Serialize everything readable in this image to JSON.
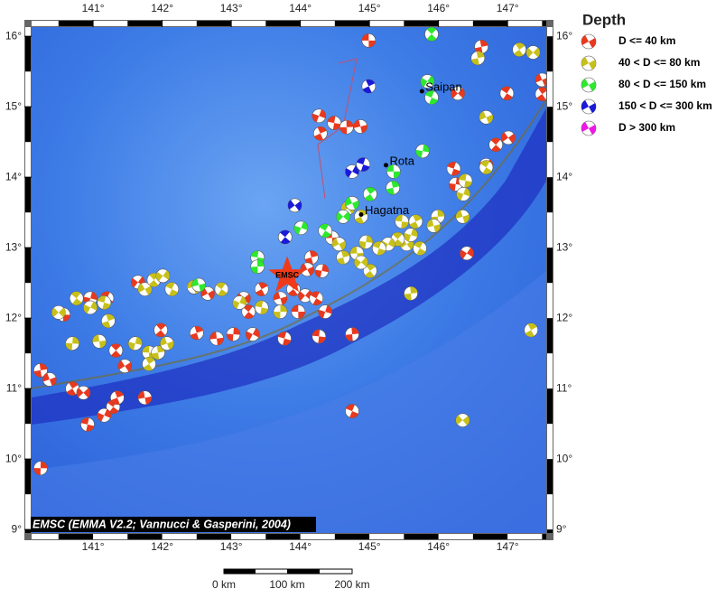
{
  "map": {
    "lonlim": [
      140.11,
      147.56
    ],
    "latlim": [
      8.95,
      16.13
    ],
    "lonticks": [
      {
        "value": 141,
        "label": "141°"
      },
      {
        "value": 142,
        "label": "142°"
      },
      {
        "value": 143,
        "label": "143°"
      },
      {
        "value": 144,
        "label": "144°"
      },
      {
        "value": 145,
        "label": "145°"
      },
      {
        "value": 146,
        "label": "146°"
      },
      {
        "value": 147,
        "label": "147°"
      }
    ],
    "latticks": [
      {
        "value": 9,
        "label": "9°"
      },
      {
        "value": 10,
        "label": "10°"
      },
      {
        "value": 11,
        "label": "11°"
      },
      {
        "value": 12,
        "label": "12°"
      },
      {
        "value": 13,
        "label": "13°"
      },
      {
        "value": 14,
        "label": "14°"
      },
      {
        "value": 15,
        "label": "15°"
      },
      {
        "value": 16,
        "label": "16°"
      }
    ],
    "legend": {
      "title": "Depth",
      "items": [
        {
          "label": "D <= 40 km",
          "color": "#e8391f"
        },
        {
          "label": "40 < D <= 80 km",
          "color": "#c8c01a"
        },
        {
          "label": "80 < D <= 150 km",
          "color": "#2ee82e"
        },
        {
          "label": "150 < D <= 300 km",
          "color": "#1a1ad8"
        },
        {
          "label": "D > 300 km",
          "color": "#ee18e6"
        }
      ]
    },
    "places": [
      {
        "name": "Saipan",
        "lon": 145.76,
        "lat": 15.22
      },
      {
        "name": "Rota",
        "lon": 145.24,
        "lat": 14.17
      },
      {
        "name": "Hagatna",
        "lon": 144.88,
        "lat": 13.47
      }
    ],
    "epicenter": {
      "label": "EMSC",
      "lon": 143.81,
      "lat": 12.6
    },
    "credit": "EMSC (EMMA V2.2; Vannucci & Gasperini, 2004)",
    "scale": {
      "labels": [
        "0 km",
        "100 km",
        "200 km"
      ]
    },
    "events": [
      [
        144.99,
        15.94,
        0
      ],
      [
        146.62,
        15.85,
        0
      ],
      [
        147.5,
        15.38,
        0
      ],
      [
        147.5,
        15.18,
        0
      ],
      [
        146.28,
        15.19,
        0
      ],
      [
        146.99,
        15.19,
        0
      ],
      [
        144.27,
        14.87,
        0
      ],
      [
        144.49,
        14.77,
        0
      ],
      [
        144.67,
        14.71,
        0
      ],
      [
        144.87,
        14.72,
        0
      ],
      [
        144.29,
        14.62,
        0
      ],
      [
        147.01,
        14.56,
        0
      ],
      [
        146.83,
        14.46,
        0
      ],
      [
        146.69,
        14.17,
        0
      ],
      [
        146.22,
        14.12,
        0
      ],
      [
        146.25,
        13.9,
        0
      ],
      [
        144.46,
        13.14,
        0
      ],
      [
        144.16,
        12.86,
        0
      ],
      [
        144.1,
        12.69,
        0
      ],
      [
        143.9,
        12.41,
        0
      ],
      [
        144.07,
        12.32,
        0
      ],
      [
        144.23,
        12.28,
        0
      ],
      [
        144.36,
        12.09,
        0
      ],
      [
        144.27,
        11.74,
        0
      ],
      [
        144.75,
        11.77,
        0
      ],
      [
        143.71,
        12.28,
        0
      ],
      [
        143.44,
        12.41,
        0
      ],
      [
        143.18,
        12.28,
        0
      ],
      [
        143.25,
        12.09,
        0
      ],
      [
        143.31,
        11.77,
        0
      ],
      [
        143.77,
        11.71,
        0
      ],
      [
        143.03,
        11.77,
        0
      ],
      [
        142.79,
        11.71,
        0
      ],
      [
        142.5,
        11.79,
        0
      ],
      [
        142.66,
        12.35,
        0
      ],
      [
        141.98,
        11.83,
        0
      ],
      [
        141.65,
        12.51,
        0
      ],
      [
        141.2,
        12.28,
        0
      ],
      [
        140.96,
        12.28,
        0
      ],
      [
        140.57,
        12.05,
        0
      ],
      [
        140.24,
        11.26,
        0
      ],
      [
        140.37,
        11.13,
        0
      ],
      [
        140.7,
        11.0,
        0
      ],
      [
        140.86,
        10.94,
        0
      ],
      [
        141.29,
        10.74,
        0
      ],
      [
        141.16,
        10.62,
        0
      ],
      [
        140.92,
        10.49,
        0
      ],
      [
        140.24,
        9.87,
        0
      ],
      [
        141.75,
        10.87,
        0
      ],
      [
        141.35,
        10.87,
        0
      ],
      [
        141.46,
        11.32,
        0
      ],
      [
        141.33,
        11.54,
        0
      ],
      [
        146.41,
        12.92,
        0
      ],
      [
        144.75,
        10.68,
        0
      ],
      [
        144.31,
        12.67,
        0
      ],
      [
        143.97,
        12.09,
        0
      ],
      [
        146.57,
        15.69,
        1
      ],
      [
        146.69,
        14.85,
        1
      ],
      [
        147.17,
        15.81,
        1
      ],
      [
        147.37,
        15.77,
        1
      ],
      [
        146.69,
        14.14,
        1
      ],
      [
        146.36,
        13.76,
        1
      ],
      [
        146.39,
        13.95,
        1
      ],
      [
        145.99,
        13.44,
        1
      ],
      [
        145.93,
        13.31,
        1
      ],
      [
        145.67,
        13.37,
        1
      ],
      [
        145.54,
        13.05,
        1
      ],
      [
        145.41,
        13.12,
        1
      ],
      [
        145.27,
        13.05,
        1
      ],
      [
        145.14,
        12.99,
        1
      ],
      [
        144.95,
        13.08,
        1
      ],
      [
        144.82,
        12.92,
        1
      ],
      [
        144.62,
        12.86,
        1
      ],
      [
        144.56,
        13.05,
        1
      ],
      [
        145.01,
        12.67,
        1
      ],
      [
        144.88,
        12.79,
        1
      ],
      [
        145.73,
        12.99,
        1
      ],
      [
        145.6,
        13.18,
        1
      ],
      [
        145.47,
        13.37,
        1
      ],
      [
        145.6,
        12.35,
        1
      ],
      [
        146.35,
        13.44,
        1
      ],
      [
        147.34,
        11.83,
        1
      ],
      [
        146.35,
        10.55,
        1
      ],
      [
        140.76,
        12.28,
        1
      ],
      [
        140.96,
        12.15,
        1
      ],
      [
        141.16,
        12.22,
        1
      ],
      [
        140.7,
        11.64,
        1
      ],
      [
        141.09,
        11.67,
        1
      ],
      [
        141.22,
        11.96,
        1
      ],
      [
        141.75,
        12.41,
        1
      ],
      [
        141.88,
        12.54,
        1
      ],
      [
        142.01,
        12.6,
        1
      ],
      [
        142.14,
        12.41,
        1
      ],
      [
        141.61,
        11.64,
        1
      ],
      [
        141.81,
        11.51,
        1
      ],
      [
        141.94,
        11.51,
        1
      ],
      [
        142.07,
        11.64,
        1
      ],
      [
        141.81,
        11.35,
        1
      ],
      [
        140.5,
        12.08,
        1
      ],
      [
        142.86,
        12.41,
        1
      ],
      [
        143.12,
        12.22,
        1
      ],
      [
        143.44,
        12.15,
        1
      ],
      [
        143.71,
        12.09,
        1
      ],
      [
        142.46,
        12.44,
        1
      ],
      [
        144.88,
        13.44,
        1
      ],
      [
        144.69,
        13.56,
        1
      ],
      [
        145.9,
        16.03,
        2
      ],
      [
        145.84,
        15.36,
        2
      ],
      [
        145.9,
        15.13,
        2
      ],
      [
        145.77,
        14.37,
        2
      ],
      [
        145.35,
        14.08,
        2
      ],
      [
        145.34,
        13.85,
        2
      ],
      [
        144.75,
        13.63,
        2
      ],
      [
        145.01,
        13.76,
        2
      ],
      [
        144.62,
        13.44,
        2
      ],
      [
        144.36,
        13.24,
        2
      ],
      [
        144.01,
        13.28,
        2
      ],
      [
        143.38,
        12.86,
        2
      ],
      [
        143.38,
        12.73,
        2
      ],
      [
        142.53,
        12.47,
        2
      ],
      [
        144.99,
        15.29,
        3
      ],
      [
        143.92,
        13.6,
        3
      ],
      [
        143.78,
        13.15,
        3
      ],
      [
        144.75,
        14.08,
        3
      ],
      [
        144.91,
        14.18,
        3
      ]
    ]
  }
}
